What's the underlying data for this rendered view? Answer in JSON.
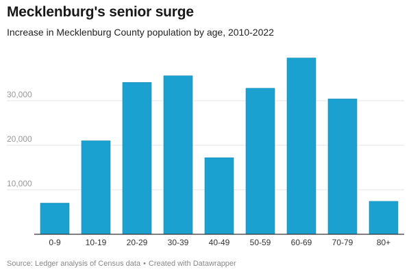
{
  "title": "Mecklenburg's senior surge",
  "subtitle": "Increase in Mecklenburg County population by age, 2010-2022",
  "footer": {
    "source": "Source: Ledger analysis of Census data",
    "separator": "•",
    "credit": "Created with Datawrapper"
  },
  "colors": {
    "bar": "#1ba1cf",
    "grid": "#e6e6e6",
    "baseline": "#333333",
    "tick_text": "#999999"
  },
  "chart_data": {
    "type": "bar",
    "categories": [
      "0-9",
      "10-19",
      "20-29",
      "30-39",
      "40-49",
      "50-59",
      "60-69",
      "70-79",
      "80+"
    ],
    "values": [
      7000,
      21000,
      34100,
      35600,
      17200,
      32800,
      39600,
      30400,
      7400
    ],
    "title": "Mecklenburg's senior surge",
    "xlabel": "",
    "ylabel": "",
    "ylim": [
      0,
      40000
    ],
    "yticks": [
      10000,
      20000,
      30000
    ],
    "ytick_labels": [
      "10,000",
      "20,000",
      "30,000"
    ],
    "grid": true
  }
}
